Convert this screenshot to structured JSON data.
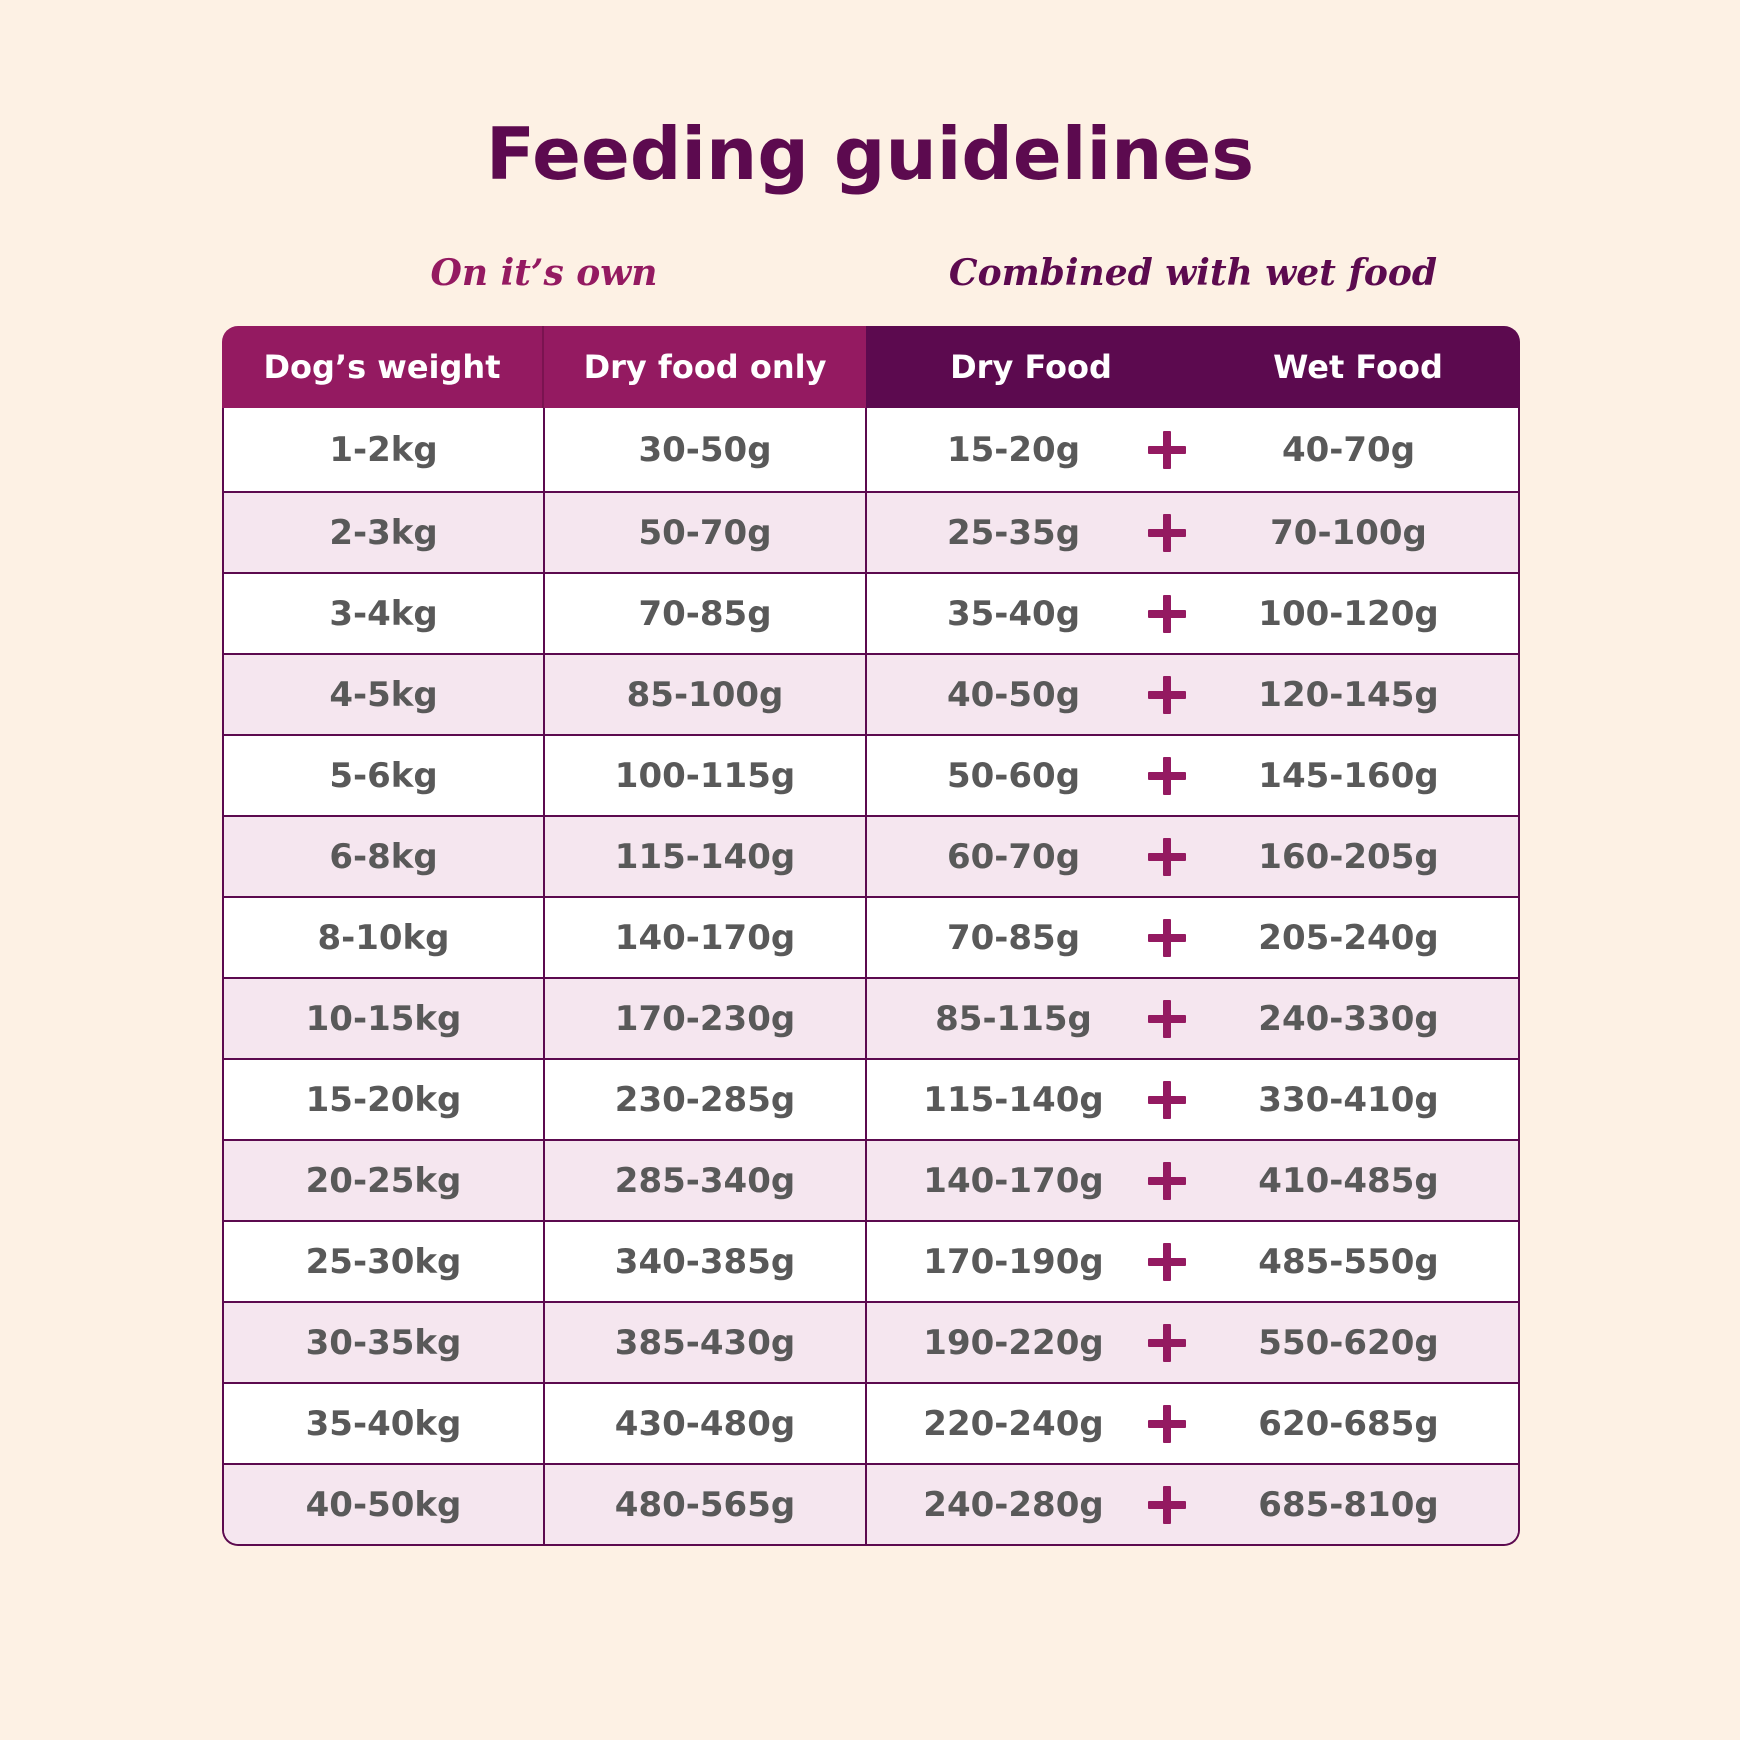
{
  "title": "Feeding guidelines",
  "sections": {
    "own": "On it’s own",
    "combined": "Combined with wet food"
  },
  "headers": {
    "weight": "Dog’s weight",
    "dry_only": "Dry food only",
    "dry": "Dry Food",
    "wet": "Wet Food"
  },
  "colors": {
    "background": "#fdf1e4",
    "magenta": "#941a61",
    "plum": "#5c0a4f",
    "row_alt": "#f5e6ef",
    "text": "#595959"
  },
  "plus_icon": "plus-icon",
  "rows": [
    {
      "weight": "1-2kg",
      "dry_only": "30-50g",
      "dry": "15-20g",
      "wet": "40-70g"
    },
    {
      "weight": "2-3kg",
      "dry_only": "50-70g",
      "dry": "25-35g",
      "wet": "70-100g"
    },
    {
      "weight": "3-4kg",
      "dry_only": "70-85g",
      "dry": "35-40g",
      "wet": "100-120g"
    },
    {
      "weight": "4-5kg",
      "dry_only": "85-100g",
      "dry": "40-50g",
      "wet": "120-145g"
    },
    {
      "weight": "5-6kg",
      "dry_only": "100-115g",
      "dry": "50-60g",
      "wet": "145-160g"
    },
    {
      "weight": "6-8kg",
      "dry_only": "115-140g",
      "dry": "60-70g",
      "wet": "160-205g"
    },
    {
      "weight": "8-10kg",
      "dry_only": "140-170g",
      "dry": "70-85g",
      "wet": "205-240g"
    },
    {
      "weight": "10-15kg",
      "dry_only": "170-230g",
      "dry": "85-115g",
      "wet": "240-330g"
    },
    {
      "weight": "15-20kg",
      "dry_only": "230-285g",
      "dry": "115-140g",
      "wet": "330-410g"
    },
    {
      "weight": "20-25kg",
      "dry_only": "285-340g",
      "dry": "140-170g",
      "wet": "410-485g"
    },
    {
      "weight": "25-30kg",
      "dry_only": "340-385g",
      "dry": "170-190g",
      "wet": "485-550g"
    },
    {
      "weight": "30-35kg",
      "dry_only": "385-430g",
      "dry": "190-220g",
      "wet": "550-620g"
    },
    {
      "weight": "35-40kg",
      "dry_only": "430-480g",
      "dry": "220-240g",
      "wet": "620-685g"
    },
    {
      "weight": "40-50kg",
      "dry_only": "480-565g",
      "dry": "240-280g",
      "wet": "685-810g"
    }
  ]
}
